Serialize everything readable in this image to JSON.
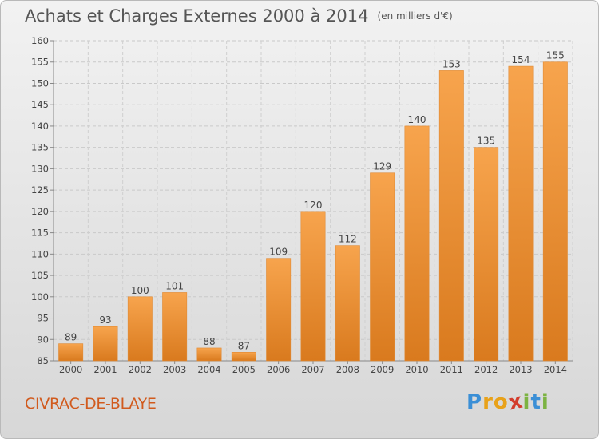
{
  "header": {
    "title": "Achats et Charges Externes 2000 à 2014",
    "subtitle": "(en milliers d'€)"
  },
  "footer": {
    "commune": "CIVRAC-DE-BLAYE",
    "logo_letters": [
      "P",
      "r",
      "o",
      "x",
      "i",
      "t",
      "i"
    ],
    "logo_colors": [
      "#3b8fd6",
      "#e8a21a",
      "#e8a21a",
      "#d33c2c",
      "#7cb342",
      "#3b8fd6",
      "#7cb342"
    ]
  },
  "colors": {
    "bar_light": "#f7a44d",
    "bar_dark": "#d97a1e",
    "accent": "#d15a1d"
  },
  "chart_data": {
    "type": "bar",
    "title": "Achats et Charges Externes 2000 à 2014",
    "subtitle": "(en milliers d'€)",
    "categories": [
      "2000",
      "2001",
      "2002",
      "2003",
      "2004",
      "2005",
      "2006",
      "2007",
      "2008",
      "2009",
      "2010",
      "2011",
      "2012",
      "2013",
      "2014"
    ],
    "values": [
      89,
      93,
      100,
      101,
      88,
      87,
      109,
      120,
      112,
      129,
      140,
      153,
      135,
      154,
      155
    ],
    "ylim": [
      85,
      160
    ],
    "yticks": [
      85,
      90,
      95,
      100,
      105,
      110,
      115,
      120,
      125,
      130,
      135,
      140,
      145,
      150,
      155,
      160
    ],
    "grid": true,
    "data_labels": true
  }
}
